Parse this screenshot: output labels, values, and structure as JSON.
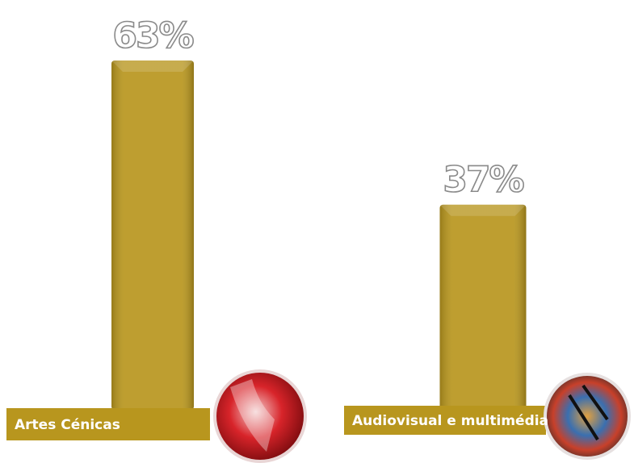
{
  "chart_data": {
    "type": "bar",
    "categories": [
      "Artes Cénicas",
      "Audiovisual e multimédia"
    ],
    "values": [
      63,
      37
    ],
    "value_labels": [
      "63%",
      "37%"
    ],
    "color": "#b8961e"
  }
}
